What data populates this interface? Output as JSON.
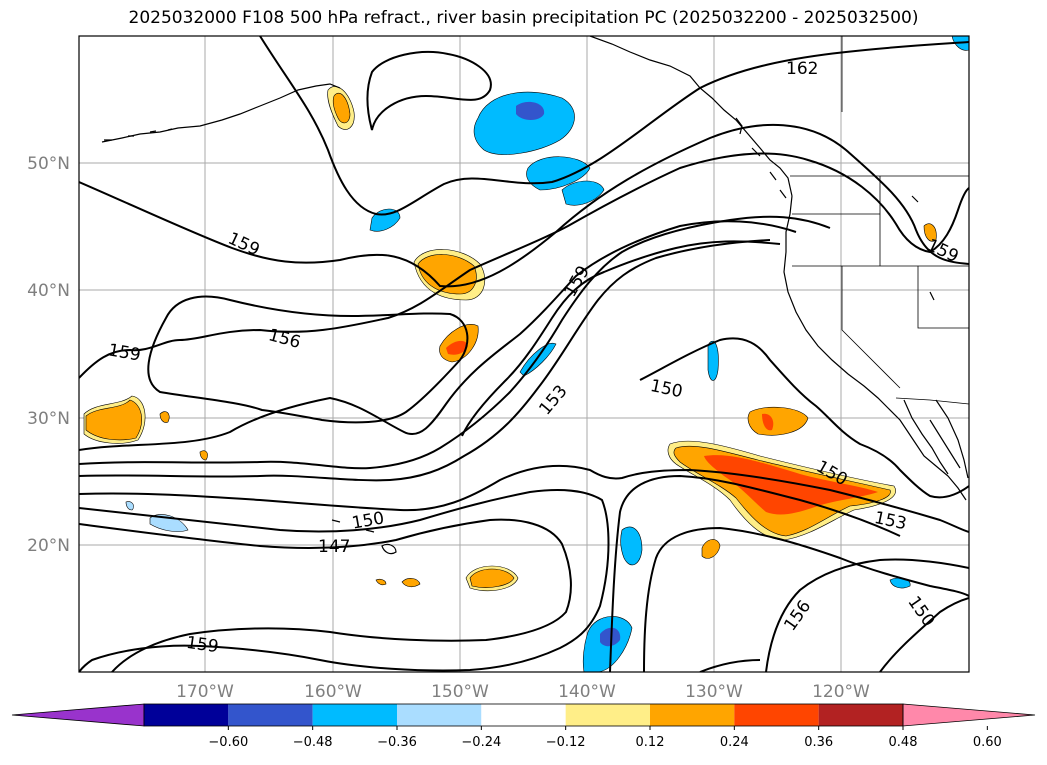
{
  "title": "2025032000 F108 500 hPa refract., river basin precipitation PC (2025032200 - 2025032500)",
  "latitude_labels": [
    "50°N",
    "40°N",
    "30°N",
    "20°N"
  ],
  "longitude_labels": [
    "170°W",
    "160°W",
    "150°W",
    "140°W",
    "130°W",
    "120°W"
  ],
  "contour_labels": [
    "162",
    "159",
    "159",
    "159",
    "159",
    "156",
    "153",
    "150",
    "150",
    "150",
    "147",
    "153",
    "156",
    "150",
    "159"
  ],
  "colorbar": {
    "tick_labels": [
      "−0.60",
      "−0.48",
      "−0.36",
      "−0.24",
      "−0.12",
      "0.12",
      "0.24",
      "0.36",
      "0.48",
      "0.60"
    ],
    "colors": [
      "#9933cc",
      "#000099",
      "#3355cc",
      "#00bbff",
      "#aaddff",
      "#ffffff",
      "#ffee88",
      "#ffa500",
      "#ff4500",
      "#b22222",
      "#ff88aa"
    ]
  },
  "colors": {
    "contour": "#000000",
    "coastline": "#000000",
    "grid": "#aaaaaa",
    "axis_label": "#7f7f7f"
  }
}
